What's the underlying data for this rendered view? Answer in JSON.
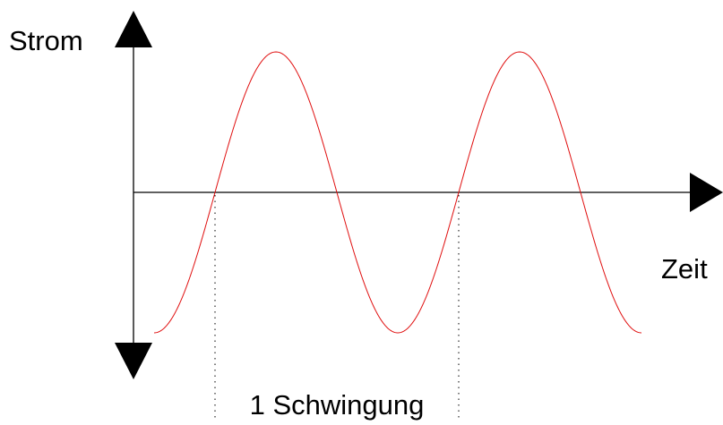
{
  "labels": {
    "y_axis": "Strom",
    "x_axis": "Zeit",
    "period": "1 Schwingung"
  },
  "colors": {
    "axis": "#000000",
    "wave": "#e01010",
    "guide": "#000000",
    "background": "#ffffff"
  },
  "wave": {
    "function": "sine",
    "cycles_shown": 2,
    "phase_start": -0.25,
    "phase_end": 1.75
  }
}
